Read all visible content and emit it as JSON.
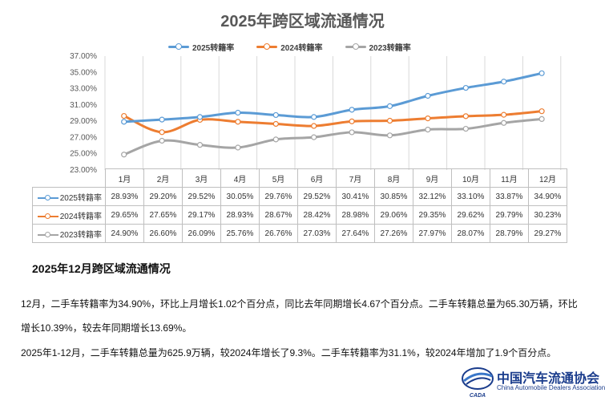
{
  "chart_data": {
    "type": "line",
    "title": "2025年跨区域流通情况",
    "categories": [
      "1月",
      "2月",
      "3月",
      "4月",
      "5月",
      "6月",
      "7月",
      "8月",
      "9月",
      "10月",
      "11月",
      "12月"
    ],
    "series": [
      {
        "name": "2025转籍率",
        "color": "#5b9bd5",
        "values": [
          28.93,
          29.2,
          29.52,
          30.05,
          29.76,
          29.52,
          30.41,
          30.85,
          32.12,
          33.1,
          33.87,
          34.9
        ],
        "labels": [
          "28.93%",
          "29.20%",
          "29.52%",
          "30.05%",
          "29.76%",
          "29.52%",
          "30.41%",
          "30.85%",
          "32.12%",
          "33.10%",
          "33.87%",
          "34.90%"
        ]
      },
      {
        "name": "2024转籍率",
        "color": "#ed7d31",
        "values": [
          29.65,
          27.65,
          29.17,
          28.93,
          28.67,
          28.42,
          28.98,
          29.06,
          29.35,
          29.62,
          29.79,
          30.23
        ],
        "labels": [
          "29.65%",
          "27.65%",
          "29.17%",
          "28.93%",
          "28.67%",
          "28.42%",
          "28.98%",
          "29.06%",
          "29.35%",
          "29.62%",
          "29.79%",
          "30.23%"
        ]
      },
      {
        "name": "2023转籍率",
        "color": "#a5a5a5",
        "values": [
          24.9,
          26.6,
          26.09,
          25.76,
          26.76,
          27.03,
          27.64,
          27.26,
          27.97,
          28.07,
          28.79,
          29.27
        ],
        "labels": [
          "24.90%",
          "26.60%",
          "26.09%",
          "25.76%",
          "26.76%",
          "27.03%",
          "27.64%",
          "27.26%",
          "27.97%",
          "28.07%",
          "28.79%",
          "29.27%"
        ]
      }
    ],
    "ylim": [
      23,
      37
    ],
    "yticks": [
      "23.00%",
      "25.00%",
      "27.00%",
      "29.00%",
      "31.00%",
      "33.00%",
      "35.00%",
      "37.00%"
    ],
    "legend_position": "top-center",
    "grid": "vertical"
  },
  "section": {
    "heading": "2025年12月跨区域流通情况",
    "para1": "12月，二手车转籍率为34.90%，环比上月增长1.02个百分点，同比去年同期增长4.67个百分点。二手车转籍总量为65.30万辆，环比增长10.39%，较去年同期增长13.69%。",
    "para2": "2025年1-12月，二手车转籍总量为625.9万辆，较2024年增长了9.3%。二手车转籍率为31.1%，较2024年增加了1.9个百分点。"
  },
  "logo": {
    "cn": "中国汽车流通协会",
    "en": "China Automobile Dealers Association",
    "mark_text": "CADA",
    "brand_color": "#1a3c8c"
  }
}
